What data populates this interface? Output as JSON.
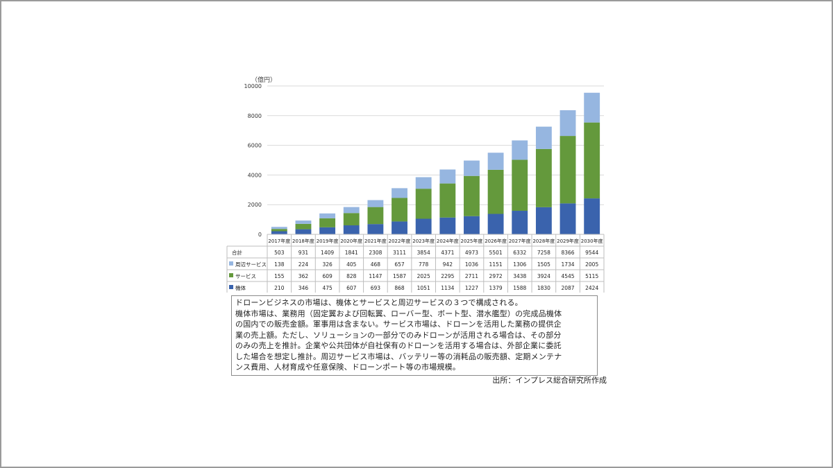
{
  "chart_data": {
    "type": "bar",
    "stacked": true,
    "unit_label": "（億円）",
    "categories": [
      "2017年度",
      "2018年度",
      "2019年度",
      "2020年度",
      "2021年度",
      "2022年度",
      "2023年度",
      "2024年度",
      "2025年度",
      "2026年度",
      "2027年度",
      "2028年度",
      "2029年度",
      "2030年度"
    ],
    "ylim": [
      0,
      10000
    ],
    "yticks": [
      0,
      2000,
      4000,
      6000,
      8000,
      10000
    ],
    "grid": true,
    "total": {
      "name": "合計",
      "values": [
        503,
        931,
        1409,
        1841,
        2308,
        3111,
        3854,
        4371,
        4973,
        5501,
        6332,
        7258,
        8366,
        9544
      ]
    },
    "series": [
      {
        "name": "機体",
        "color": "#3a63ad",
        "values": [
          210,
          346,
          475,
          607,
          693,
          868,
          1051,
          1134,
          1227,
          1379,
          1588,
          1830,
          2087,
          2424
        ]
      },
      {
        "name": "サービス",
        "color": "#64993c",
        "values": [
          155,
          362,
          609,
          828,
          1147,
          1587,
          2025,
          2295,
          2711,
          2972,
          3438,
          3924,
          4545,
          5115
        ]
      },
      {
        "name": "周辺サービス",
        "color": "#96b6e0",
        "values": [
          138,
          224,
          326,
          405,
          468,
          657,
          778,
          942,
          1036,
          1151,
          1306,
          1505,
          1734,
          2005
        ]
      }
    ],
    "table_order": [
      2,
      1,
      0
    ]
  },
  "note_lines": [
    "ドローンビジネスの市場は、機体とサービスと周辺サービスの３つで構成される。",
    "機体市場は、業務用（固定翼および回転翼、ローバー型、ボート型、潜水艦型）の完成品機体",
    "の国内での販売金額。軍事用は含まない。サービス市場は、ドローンを活用した業務の提供企",
    "業の売上額。ただし、ソリューションの一部分でのみドローンが活用される場合は、その部分",
    "のみの売上を推計。企業や公共団体が自社保有のドローンを活用する場合は、外部企業に委託",
    "した場合を想定し推計。周辺サービス市場は、バッテリー等の消耗品の販売額、定期メンテナ",
    "ンス費用、人材育成や任意保険、ドローンポート等の市場規模。"
  ],
  "source": "出所：インプレス総合研究所作成"
}
